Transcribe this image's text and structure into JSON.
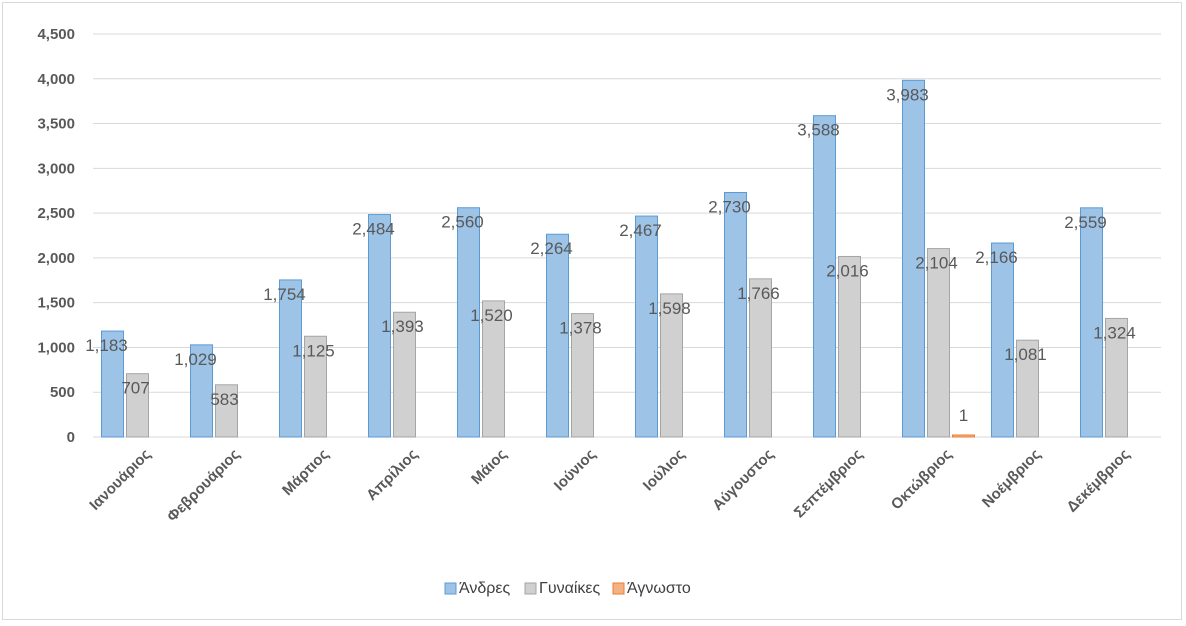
{
  "chart_data": {
    "type": "bar",
    "categories": [
      "Ιανουάριος",
      "Φεβρουάριος",
      "Μάρτιος",
      "Απρίλιος",
      "Μάιος",
      "Ιούνιος",
      "Ιούλιος",
      "Αύγουστος",
      "Σεπτέμβριος",
      "Οκτώβριος",
      "Νοέμβριος",
      "Δεκέμβριος"
    ],
    "series": [
      {
        "name": "Άνδρες",
        "color": "#9dc3e6",
        "border": "#5b9bd5",
        "values": [
          1183,
          1029,
          1754,
          2484,
          2560,
          2264,
          2467,
          2730,
          3588,
          3983,
          2166,
          2559
        ],
        "labels": [
          "1,183",
          "1,029",
          "1,754",
          "2,484",
          "2,560",
          "2,264",
          "2,467",
          "2,730",
          "3,588",
          "3,983",
          "2,166",
          "2,559"
        ]
      },
      {
        "name": "Γυναίκες",
        "color": "#d0d0d0",
        "border": "#a5a5a5",
        "values": [
          707,
          583,
          1125,
          1393,
          1520,
          1378,
          1598,
          1766,
          2016,
          2104,
          1081,
          1324
        ],
        "labels": [
          "707",
          "583",
          "1,125",
          "1,393",
          "1,520",
          "1,378",
          "1,598",
          "1,766",
          "2,016",
          "2,104",
          "1,081",
          "1,324"
        ]
      },
      {
        "name": "Άγνωστο",
        "color": "#f4b183",
        "border": "#ed7d31",
        "values": [
          0,
          0,
          0,
          0,
          0,
          0,
          0,
          0,
          0,
          1,
          0,
          0
        ],
        "labels": [
          "",
          "",
          "",
          "",
          "",
          "",
          "",
          "",
          "",
          "1",
          "",
          ""
        ]
      }
    ],
    "ylim": [
      0,
      4500
    ],
    "yticks": [
      0,
      500,
      1000,
      1500,
      2000,
      2500,
      3000,
      3500,
      4000,
      4500
    ],
    "ytick_labels": [
      "0",
      "500",
      "1,000",
      "1,500",
      "2,000",
      "2,500",
      "3,000",
      "3,500",
      "4,000",
      "4,500"
    ],
    "grid": true,
    "legend_position": "bottom",
    "title": "",
    "xlabel": "",
    "ylabel": ""
  }
}
